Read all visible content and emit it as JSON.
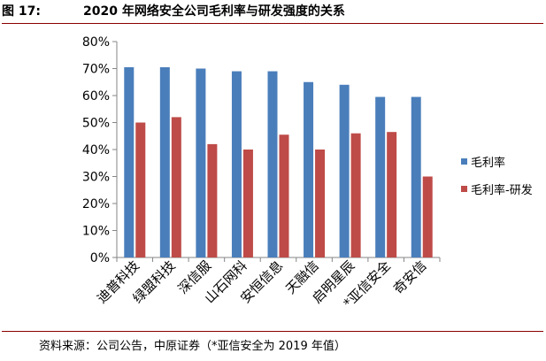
{
  "figure": {
    "label": "图 17:",
    "title": "2020 年网络安全公司毛利率与研发强度的关系"
  },
  "source": "资料来源：公司公告，中原证券（*亚信安全为 2019 年值）",
  "chart_data": {
    "type": "bar",
    "categories": [
      "迪普科技",
      "绿盟科技",
      "深信服",
      "山石网科",
      "安恒信息",
      "天融信",
      "启明星辰",
      "*亚信安全",
      "奇安信"
    ],
    "series": [
      {
        "name": "毛利率",
        "color": "#4a7ebb",
        "values": [
          70.5,
          70.5,
          70.0,
          69.0,
          69.0,
          65.0,
          64.0,
          59.5,
          59.5
        ]
      },
      {
        "name": "毛利率-研发",
        "color": "#be4b48",
        "values": [
          50.0,
          52.0,
          42.0,
          40.0,
          45.5,
          40.0,
          46.0,
          46.5,
          30.0
        ]
      }
    ],
    "yticks": [
      "0%",
      "10%",
      "20%",
      "30%",
      "40%",
      "50%",
      "60%",
      "70%",
      "80%"
    ],
    "ylim": [
      0,
      80
    ],
    "legend_position": "right",
    "grid": false
  }
}
